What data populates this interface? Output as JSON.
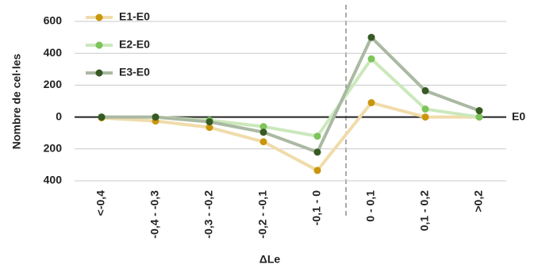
{
  "chart_data": {
    "type": "line",
    "y_label": "Nombre de cel·les",
    "x_label": "ΔLe",
    "annotation": "E0",
    "categories": [
      "<-0,4",
      "-0,4 - -0,3",
      "-0,3 - -0,2",
      "-0,2 - -0,1",
      "-0,1 - 0",
      "0 - 0,1",
      "0,1 - 0,2",
      ">0,2"
    ],
    "series": [
      {
        "name": "E1-E0",
        "color": "#c9960c",
        "line_color": "#f0dcaa",
        "values": [
          -5,
          -25,
          -65,
          -155,
          -335,
          90,
          0,
          0
        ]
      },
      {
        "name": "E2-E0",
        "color": "#7dc45a",
        "line_color": "#cbe8bb",
        "values": [
          0,
          0,
          -20,
          -60,
          -120,
          365,
          50,
          0
        ]
      },
      {
        "name": "E3-E0",
        "color": "#375a23",
        "line_color": "#aab9a2",
        "values": [
          0,
          0,
          -30,
          -95,
          -220,
          500,
          165,
          40
        ]
      }
    ],
    "ylim": [
      -400,
      600
    ],
    "yticks": [
      {
        "value": -400,
        "label": "400"
      },
      {
        "value": -200,
        "label": "200"
      },
      0,
      200,
      400,
      600
    ],
    "grid": true,
    "legend": "top-left"
  }
}
